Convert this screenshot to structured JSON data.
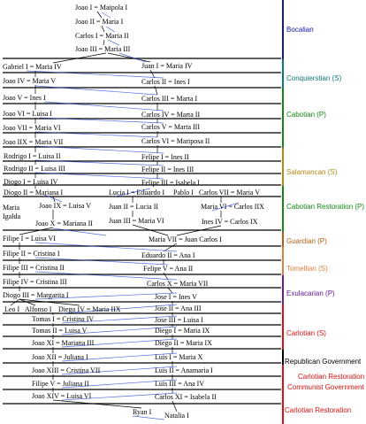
{
  "colors": {
    "era_bar_bocalian": "#1515aa",
    "era_bar_conquierstian": "#0b7a7a",
    "era_bar_cabotian": "#148a14",
    "era_bar_salamancan": "#b08a1a",
    "era_bar_cabotian_restoration": "#148a14",
    "era_bar_guardian": "#b06010",
    "era_bar_tomellian": "#e08040",
    "era_bar_exulacarian": "#6a1a9a",
    "era_bar_carlotian": "#dd1111",
    "era_bar_republican": "#000000",
    "era_bar_carlotian_restoration": "#dd1111",
    "era_bar_communist": "#dd1111",
    "divider": "#000000",
    "connector": "#2a4ad4"
  },
  "eras": {
    "bocalian": "Bocalian",
    "conquierstian": "Conquierstian (S)",
    "cabotian": "Cabotian (P)",
    "salamancan": "Salamancan (S)",
    "cabotian_restoration": "Cabotian Restoration (P)",
    "guardian": "Guardian (P)",
    "tomellian": "Tomellian (S)",
    "exulacarian": "Exulacarian (P)",
    "carlotian": "Carlotian (S)",
    "republican": "Republican Government",
    "carlotian_restoration_1": "Carlotian Restoration",
    "communist": "Communist Government",
    "carlotian_restoration_2": "Carlotian Restoration"
  },
  "nodes": {
    "joao1": "Joao I = Maipola I",
    "joao2": "Joao II = Maria I",
    "carlos1": "Carlos I = Maria II",
    "joao3": "Joao III = Maria III",
    "gabriel1": "Gabriel I = Maria IV",
    "juan1": "Juan I = Maria IV",
    "joao4": "Joao IV = Maria V",
    "carlos2": "Carlos II = Ines I",
    "joao5": "Joao V = Ines I",
    "carlos3": "Carlos III = Marta I",
    "joao6": "Joao VI = Luisa I",
    "carlos4": "Carlos IV = Marta II",
    "joao7": "Joao VII = Maria VI",
    "carlos5": "Carlos V = Marta III",
    "joao9": "Joao IIX = Maria VII",
    "carlos6": "Carlos VI = Mariposa II",
    "rodrigo1": "Rodrigo I = Luisa II",
    "felipe1": "Felipe I = Ines II",
    "rodrigo2": "Rodrigo II = Luisa III",
    "felipe2": "Felipe II = Ines III",
    "diogo1": "Diogo I = Luisa IV",
    "felipe3": "Felipe III = Isabela I",
    "diogo2": "Diogo II = Mariana I",
    "lucia1": "Lucia I = Eduardo I",
    "pablo1": "Pablo I",
    "carlos7": "Carlos VII = Maria V",
    "maria_igalda": "Maria Igalda",
    "joao9b": "Joao IX = Luisa V",
    "juan2": "Juan II = Lucia II",
    "maria6": "Maria VI = Carlos IIX",
    "joao10": "Joao X = Mariana II",
    "juan3": "Juan III = Maria VI",
    "ines4": "Ines IV = Carlos IX",
    "felipe_1b": "Filipe I = Luisa VI",
    "maria7": "Maria VII = Juan Carlos I",
    "filipe2": "Filipe II = Cristina I",
    "eduardo2": "Eduardo II = Ana I",
    "filipe3": "Filipe III = Cristina II",
    "felipe5": "Felipe V = Ana II",
    "filipe4": "Filipe IV = Cristina III",
    "carlos10": "Carlos X = Maria VII",
    "diogo3": "Diogo III = Margarita I",
    "jose1": "Jose I = Ines V",
    "leo1": "Leo I",
    "alfonso1": "Alfonso I",
    "diego4": "Diego IV = Maria IIX",
    "jose2": "Jose II = Ana III",
    "tomas1": "Tomas I = Cristina IV",
    "jose3": "Jose III = Luisa I",
    "tomas2": "Tomas II = Luisa V",
    "diego1": "Diego I = Maria IX",
    "joao11": "Joao XI = Mariana III",
    "diego2": "Diego II = Maria IX",
    "joao12": "Joao XII = Juliana I",
    "luis1": "Luis I = Maria X",
    "joao13": "Joao XIII = Cristina VII",
    "luis2": "Luis II = Anamaria I",
    "filipe5": "Filipe V = Juliana II",
    "luis3": "Luis III = Ana IV",
    "joao14": "Joao XIV = Luisa VI",
    "carlos11": "Carlos XI = Isabela II",
    "ryan1": "Ryan I",
    "natalia1": "Natalia I"
  }
}
